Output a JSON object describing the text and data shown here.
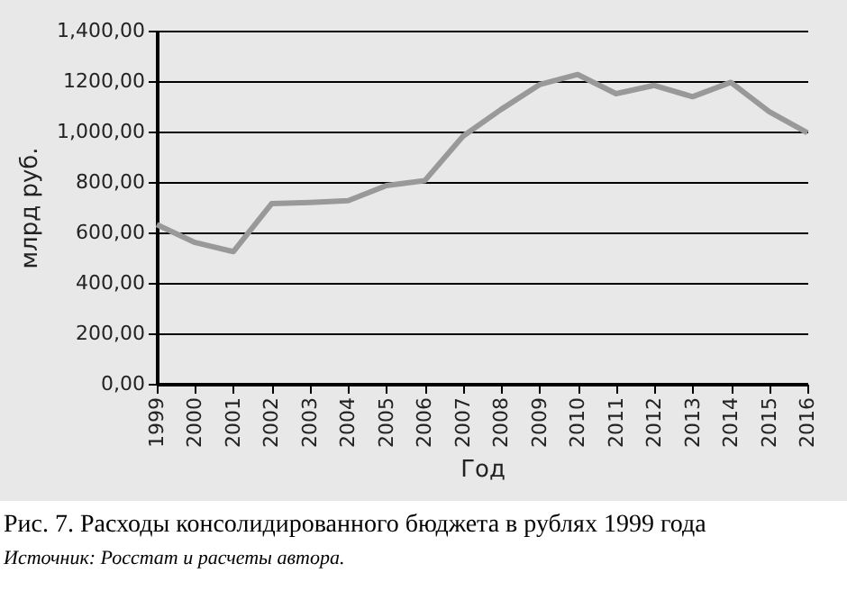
{
  "chart_data": {
    "type": "line",
    "title": "Рис. 7. Расходы консолидированного бюджета в рублях 1999 года",
    "annotations": [
      "Источник: Росстат и расчеты автора."
    ],
    "xlabel": "Год",
    "ylabel": "млрд руб.",
    "categories": [
      "1999",
      "2000",
      "2001",
      "2002",
      "2003",
      "2004",
      "2005",
      "2006",
      "2007",
      "2008",
      "2009",
      "2010",
      "2011",
      "2012",
      "2013",
      "2014",
      "2015",
      "2016"
    ],
    "series": [
      {
        "color": "#999999",
        "values": [
          631,
          560,
          524,
          714,
          719,
          726,
          786,
          805,
          981,
          1088,
          1186,
          1226,
          1150,
          1183,
          1138,
          1195,
          1079,
          995
        ]
      }
    ],
    "ylim": [
      0,
      1400
    ],
    "yticks": [
      {
        "value": 0,
        "label": "0,00"
      },
      {
        "value": 200,
        "label": "200,00"
      },
      {
        "value": 400,
        "label": "400,00"
      },
      {
        "value": 600,
        "label": "600,00"
      },
      {
        "value": 800,
        "label": "800,00"
      },
      {
        "value": 1000,
        "label": "1,000,00"
      },
      {
        "value": 1200,
        "label": "1200,00"
      },
      {
        "value": 1400,
        "label": "1,400,00"
      }
    ],
    "grid": "y",
    "marker": "none",
    "line_style": "solid"
  }
}
